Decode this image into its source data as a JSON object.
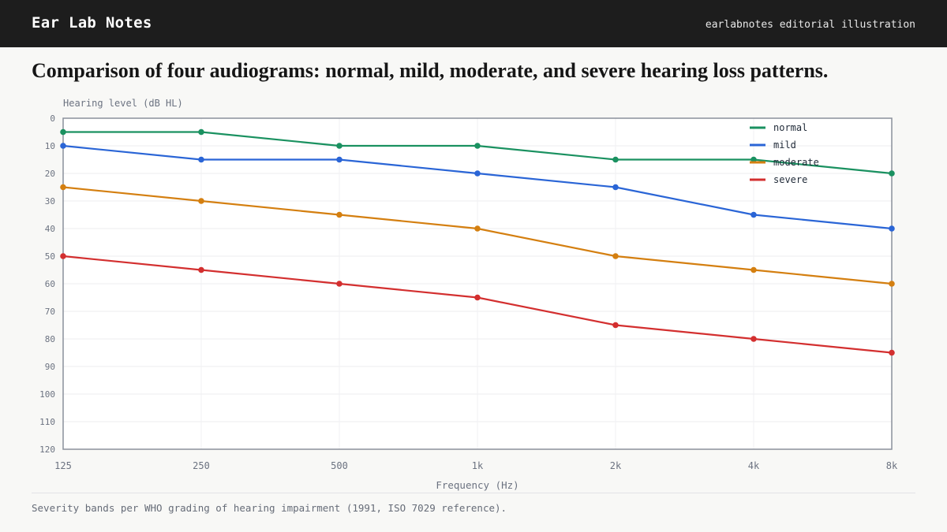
{
  "header": {
    "brand": "Ear Lab Notes",
    "tagline": "earlabnotes editorial illustration"
  },
  "footnote": "Severity bands per WHO grading of hearing impairment (1991, ISO 7029 reference).",
  "chart_data": {
    "type": "line",
    "title": "Comparison of four audiograms: normal, mild, moderate, and severe hearing loss patterns.",
    "xlabel": "Frequency (Hz)",
    "ylabel": "Hearing level (dB HL)",
    "categories": [
      "125",
      "250",
      "500",
      "1k",
      "2k",
      "4k",
      "8k"
    ],
    "ylim": [
      0,
      120
    ],
    "y_inverted": true,
    "y_ticks": [
      0,
      10,
      20,
      30,
      40,
      50,
      60,
      70,
      80,
      90,
      100,
      110,
      120
    ],
    "grid": true,
    "legend_position": "top-right",
    "series": [
      {
        "name": "normal",
        "color": "#1a9160",
        "values": [
          5,
          5,
          10,
          10,
          15,
          15,
          20
        ]
      },
      {
        "name": "mild",
        "color": "#2a65d6",
        "values": [
          10,
          15,
          15,
          20,
          25,
          35,
          40
        ]
      },
      {
        "name": "moderate",
        "color": "#d47f10",
        "values": [
          25,
          30,
          35,
          40,
          50,
          55,
          60
        ]
      },
      {
        "name": "severe",
        "color": "#d32f2f",
        "values": [
          50,
          55,
          60,
          65,
          75,
          80,
          85
        ]
      }
    ]
  }
}
